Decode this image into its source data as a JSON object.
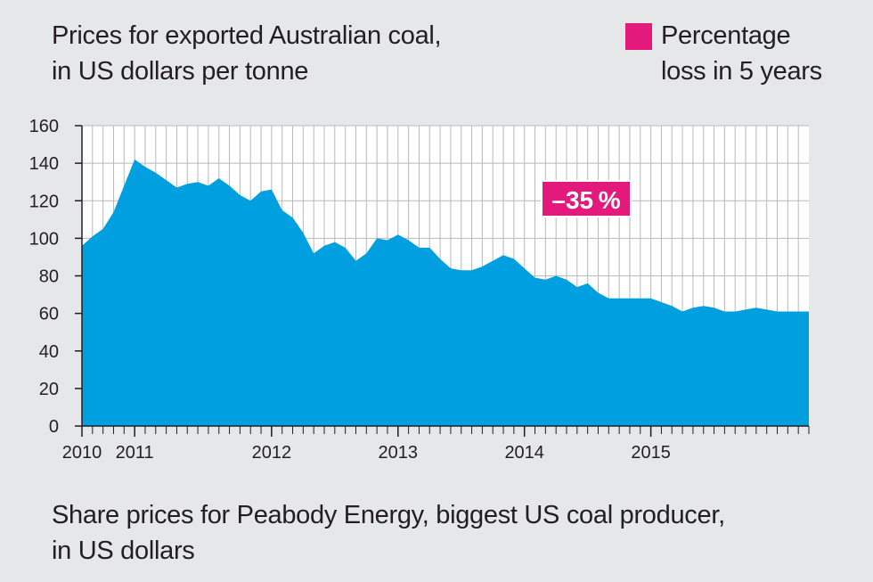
{
  "chart_data": {
    "type": "area",
    "title_lines": [
      "Prices for exported Australian coal,",
      "in US dollars per tonne"
    ],
    "legend": {
      "label_lines": [
        "Percentage",
        "loss in 5 years"
      ],
      "color": "#e3197b"
    },
    "annotation": "–35 %",
    "series_color": "#009fdf",
    "ylim": [
      0,
      160
    ],
    "y_ticks": [
      0,
      20,
      40,
      60,
      80,
      100,
      120,
      140,
      160
    ],
    "xlim": [
      2010.0,
      2015.75
    ],
    "x_ticks": [
      {
        "value": 2010.0,
        "label": "2010"
      },
      {
        "value": 2010.417,
        "label": "2011"
      },
      {
        "value": 2011.5,
        "label": "2012"
      },
      {
        "value": 2012.5,
        "label": "2013"
      },
      {
        "value": 2013.5,
        "label": "2014"
      },
      {
        "value": 2014.5,
        "label": "2015"
      }
    ],
    "x": [
      2010.0,
      2010.083,
      2010.167,
      2010.25,
      2010.333,
      2010.417,
      2010.5,
      2010.583,
      2010.667,
      2010.75,
      2010.833,
      2010.917,
      2011.0,
      2011.083,
      2011.167,
      2011.25,
      2011.333,
      2011.417,
      2011.5,
      2011.583,
      2011.667,
      2011.75,
      2011.833,
      2011.917,
      2012.0,
      2012.083,
      2012.167,
      2012.25,
      2012.333,
      2012.417,
      2012.5,
      2012.583,
      2012.667,
      2012.75,
      2012.833,
      2012.917,
      2013.0,
      2013.083,
      2013.167,
      2013.25,
      2013.333,
      2013.417,
      2013.5,
      2013.583,
      2013.667,
      2013.75,
      2013.833,
      2013.917,
      2014.0,
      2014.083,
      2014.167,
      2014.25,
      2014.333,
      2014.417,
      2014.5,
      2014.583,
      2014.667,
      2014.75,
      2014.833,
      2014.917,
      2015.0,
      2015.083,
      2015.167,
      2015.25,
      2015.333,
      2015.417,
      2015.5,
      2015.583,
      2015.667,
      2015.75
    ],
    "values": [
      96,
      101,
      105,
      114,
      128,
      142,
      138,
      135,
      131,
      127,
      129,
      130,
      128,
      132,
      128,
      123,
      120,
      125,
      126,
      115,
      111,
      103,
      92,
      96,
      98,
      95,
      88,
      92,
      100,
      99,
      102,
      99,
      95,
      95,
      89,
      84,
      83,
      83,
      85,
      88,
      91,
      89,
      84,
      79,
      78,
      80,
      78,
      74,
      76,
      71,
      68,
      68,
      68,
      68,
      68,
      66,
      64,
      61,
      63,
      64,
      63,
      61,
      61,
      62,
      63,
      62,
      61,
      61,
      61,
      61
    ],
    "xlabel": "",
    "ylabel": "",
    "subtitle_lines": [
      "Share prices for Peabody Energy, biggest US coal producer,",
      "in US dollars"
    ]
  }
}
